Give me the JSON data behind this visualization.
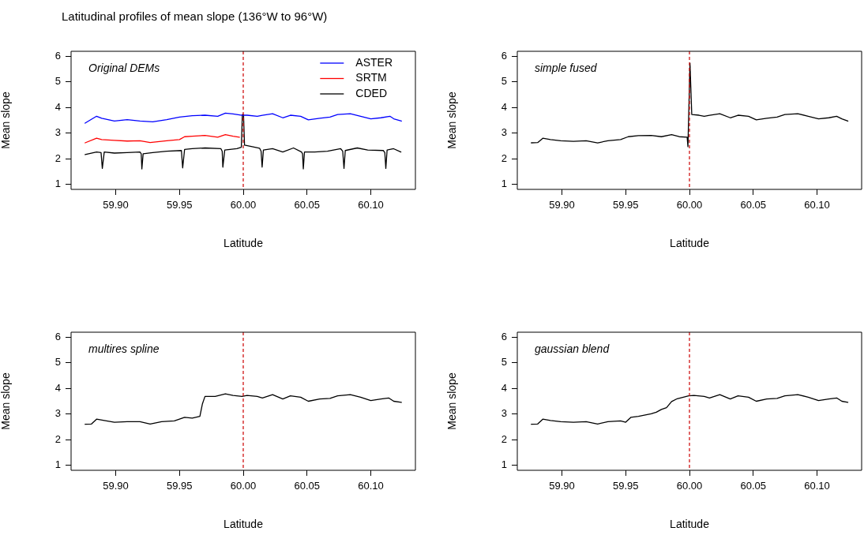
{
  "chart_data": [
    {
      "type": "line",
      "title": "Latitudinal profiles of mean slope (136°W to 96°W)",
      "xlabel": "Latitude",
      "ylabel": "Mean slope",
      "annotations": [
        "Original DEMs"
      ],
      "xlim": [
        59.865,
        60.135
      ],
      "ylim": [
        0.8,
        6.2
      ],
      "xticks": [
        {
          "value": 59.9,
          "label": "59.90"
        },
        {
          "value": 59.95,
          "label": "59.95"
        },
        {
          "value": 60,
          "label": "60.00"
        },
        {
          "value": 60.05,
          "label": "60.05"
        },
        {
          "value": 60.1,
          "label": "60.10"
        }
      ],
      "yticks": [
        1,
        2,
        3,
        4,
        5,
        6
      ],
      "legend": "top right",
      "marker": "none",
      "line_style": "solid",
      "ref_lines": [
        {
          "axis": "x",
          "value": 60,
          "color": "#cc0000",
          "line_style": "dashed"
        }
      ],
      "series": [
        {
          "name": "ASTER",
          "color": "#0000ff",
          "x": [
            59.876,
            59.885,
            59.889,
            59.899,
            59.909,
            59.919,
            59.929,
            59.94,
            59.95,
            59.96,
            59.97,
            59.98,
            59.986,
            59.992,
            59.999,
            60.003,
            60.011,
            60.015,
            60.023,
            60.031,
            60.037,
            60.045,
            60.051,
            60.06,
            60.068,
            60.074,
            60.084,
            60.092,
            60.1,
            60.108,
            60.115,
            60.118,
            60.124
          ],
          "values": [
            3.39,
            3.66,
            3.58,
            3.47,
            3.53,
            3.47,
            3.44,
            3.53,
            3.63,
            3.68,
            3.7,
            3.66,
            3.78,
            3.75,
            3.7,
            3.7,
            3.66,
            3.7,
            3.76,
            3.6,
            3.7,
            3.66,
            3.52,
            3.58,
            3.63,
            3.73,
            3.76,
            3.66,
            3.56,
            3.6,
            3.66,
            3.56,
            3.47
          ]
        },
        {
          "name": "SRTM",
          "color": "#ff0000",
          "x": [
            59.876,
            59.885,
            59.889,
            59.899,
            59.909,
            59.919,
            59.927,
            59.94,
            59.95,
            59.954,
            59.96,
            59.97,
            59.98,
            59.986,
            59.992,
            59.997
          ],
          "values": [
            2.62,
            2.8,
            2.75,
            2.72,
            2.69,
            2.7,
            2.63,
            2.7,
            2.75,
            2.86,
            2.88,
            2.91,
            2.84,
            2.94,
            2.88,
            2.84
          ]
        },
        {
          "name": "CDED",
          "color": "#000000",
          "x": [
            59.876,
            59.885,
            59.8885,
            59.8895,
            59.891,
            59.899,
            59.909,
            59.919,
            59.92,
            59.9205,
            59.9215,
            59.929,
            59.94,
            59.9515,
            59.9525,
            59.954,
            59.96,
            59.97,
            59.9825,
            59.9835,
            59.984,
            59.9855,
            59.995,
            59.9985,
            59.9993,
            60.0002,
            60.001,
            60.007,
            60.0128,
            60.014,
            60.0148,
            60.0158,
            60.023,
            60.031,
            60.0394,
            60.0457,
            60.0465,
            60.0471,
            60.048,
            60.056,
            60.066,
            60.0764,
            60.078,
            60.079,
            60.08,
            60.0894,
            60.0976,
            60.1098,
            60.111,
            60.1118,
            60.1128,
            60.1179,
            60.1236
          ],
          "values": [
            2.16,
            2.26,
            2.24,
            1.62,
            2.26,
            2.22,
            2.24,
            2.26,
            2.19,
            1.6,
            2.19,
            2.24,
            2.29,
            2.32,
            1.64,
            2.36,
            2.39,
            2.42,
            2.39,
            2.29,
            1.67,
            2.34,
            2.39,
            2.45,
            3.73,
            3.73,
            2.53,
            2.47,
            2.41,
            2.29,
            1.67,
            2.34,
            2.39,
            2.26,
            2.42,
            2.26,
            2.19,
            1.6,
            2.26,
            2.26,
            2.29,
            2.39,
            2.29,
            1.62,
            2.32,
            2.42,
            2.34,
            2.32,
            2.24,
            1.62,
            2.34,
            2.39,
            2.26
          ]
        }
      ]
    },
    {
      "type": "line",
      "xlabel": "Latitude",
      "ylabel": "Mean slope",
      "annotations": [
        "simple fused"
      ],
      "xlim": [
        59.865,
        60.135
      ],
      "ylim": [
        0.8,
        6.2
      ],
      "xticks": [
        {
          "value": 59.9,
          "label": "59.90"
        },
        {
          "value": 59.95,
          "label": "59.95"
        },
        {
          "value": 60,
          "label": "60.00"
        },
        {
          "value": 60.05,
          "label": "60.05"
        },
        {
          "value": 60.1,
          "label": "60.10"
        }
      ],
      "yticks": [
        1,
        2,
        3,
        4,
        5,
        6
      ],
      "marker": "none",
      "line_style": "solid",
      "ref_lines": [
        {
          "axis": "x",
          "value": 60,
          "color": "#cc0000",
          "line_style": "dashed"
        }
      ],
      "series": [
        {
          "color": "#000000",
          "x": [
            59.876,
            59.881,
            59.885,
            59.891,
            59.899,
            59.909,
            59.919,
            59.928,
            59.936,
            59.946,
            59.952,
            59.96,
            59.97,
            59.978,
            59.986,
            59.992,
            59.9982,
            59.9988,
            60.0004,
            60.0018,
            60.0075,
            60.0116,
            60.0157,
            60.0238,
            60.032,
            60.0381,
            60.0463,
            60.0524,
            60.0606,
            60.0687,
            60.0748,
            60.085,
            60.0931,
            60.1012,
            60.1093,
            60.1154,
            60.1195,
            60.1242
          ],
          "values": [
            2.62,
            2.63,
            2.8,
            2.75,
            2.7,
            2.68,
            2.7,
            2.62,
            2.7,
            2.75,
            2.86,
            2.9,
            2.91,
            2.86,
            2.94,
            2.86,
            2.84,
            2.47,
            5.74,
            3.73,
            3.7,
            3.66,
            3.7,
            3.76,
            3.6,
            3.7,
            3.66,
            3.52,
            3.58,
            3.63,
            3.73,
            3.76,
            3.66,
            3.56,
            3.6,
            3.66,
            3.56,
            3.47
          ]
        }
      ]
    },
    {
      "type": "line",
      "xlabel": "Latitude",
      "ylabel": "Mean slope",
      "annotations": [
        "multires spline"
      ],
      "xlim": [
        59.865,
        60.135
      ],
      "ylim": [
        0.8,
        6.2
      ],
      "xticks": [
        {
          "value": 59.9,
          "label": "59.90"
        },
        {
          "value": 59.95,
          "label": "59.95"
        },
        {
          "value": 60,
          "label": "60.00"
        },
        {
          "value": 60.05,
          "label": "60.05"
        },
        {
          "value": 60.1,
          "label": "60.10"
        }
      ],
      "yticks": [
        1,
        2,
        3,
        4,
        5,
        6
      ],
      "marker": "none",
      "line_style": "solid",
      "ref_lines": [
        {
          "axis": "x",
          "value": 60,
          "color": "#cc0000",
          "line_style": "dashed"
        }
      ],
      "series": [
        {
          "color": "#000000",
          "x": [
            59.876,
            59.881,
            59.885,
            59.891,
            59.899,
            59.909,
            59.919,
            59.927,
            59.936,
            59.946,
            59.954,
            59.96,
            59.966,
            59.968,
            59.97,
            59.978,
            59.986,
            59.992,
            59.999,
            60.003,
            60.011,
            60.015,
            60.023,
            60.031,
            60.037,
            60.045,
            60.051,
            60.06,
            60.068,
            60.074,
            60.084,
            60.092,
            60.1,
            60.108,
            60.114,
            60.118,
            60.124
          ],
          "values": [
            2.6,
            2.61,
            2.8,
            2.75,
            2.68,
            2.7,
            2.7,
            2.61,
            2.7,
            2.73,
            2.87,
            2.84,
            2.91,
            3.4,
            3.69,
            3.69,
            3.79,
            3.73,
            3.69,
            3.73,
            3.69,
            3.63,
            3.76,
            3.59,
            3.71,
            3.66,
            3.5,
            3.59,
            3.61,
            3.71,
            3.76,
            3.66,
            3.53,
            3.59,
            3.63,
            3.5,
            3.46
          ]
        }
      ]
    },
    {
      "type": "line",
      "xlabel": "Latitude",
      "ylabel": "Mean slope",
      "annotations": [
        "gaussian blend"
      ],
      "xlim": [
        59.865,
        60.135
      ],
      "ylim": [
        0.8,
        6.2
      ],
      "xticks": [
        {
          "value": 59.9,
          "label": "59.90"
        },
        {
          "value": 59.95,
          "label": "59.95"
        },
        {
          "value": 60,
          "label": "60.00"
        },
        {
          "value": 60.05,
          "label": "60.05"
        },
        {
          "value": 60.1,
          "label": "60.10"
        }
      ],
      "yticks": [
        1,
        2,
        3,
        4,
        5,
        6
      ],
      "marker": "none",
      "line_style": "solid",
      "ref_lines": [
        {
          "axis": "x",
          "value": 60,
          "color": "#cc0000",
          "line_style": "dashed"
        }
      ],
      "series": [
        {
          "color": "#000000",
          "x": [
            59.876,
            59.881,
            59.885,
            59.891,
            59.899,
            59.909,
            59.919,
            59.928,
            59.936,
            59.946,
            59.95,
            59.954,
            59.96,
            59.97,
            59.974,
            59.978,
            59.982,
            59.986,
            59.9904,
            59.9994,
            60.0035,
            60.0116,
            60.0157,
            60.0238,
            60.032,
            60.0381,
            60.0463,
            60.0524,
            60.0606,
            60.0687,
            60.0748,
            60.085,
            60.0931,
            60.1012,
            60.1093,
            60.1154,
            60.1195,
            60.1242
          ],
          "values": [
            2.6,
            2.61,
            2.8,
            2.75,
            2.7,
            2.68,
            2.7,
            2.61,
            2.7,
            2.73,
            2.68,
            2.87,
            2.91,
            3.01,
            3.07,
            3.18,
            3.25,
            3.49,
            3.6,
            3.71,
            3.73,
            3.69,
            3.63,
            3.76,
            3.59,
            3.71,
            3.66,
            3.5,
            3.59,
            3.61,
            3.71,
            3.76,
            3.66,
            3.53,
            3.59,
            3.63,
            3.5,
            3.46
          ]
        }
      ]
    }
  ]
}
